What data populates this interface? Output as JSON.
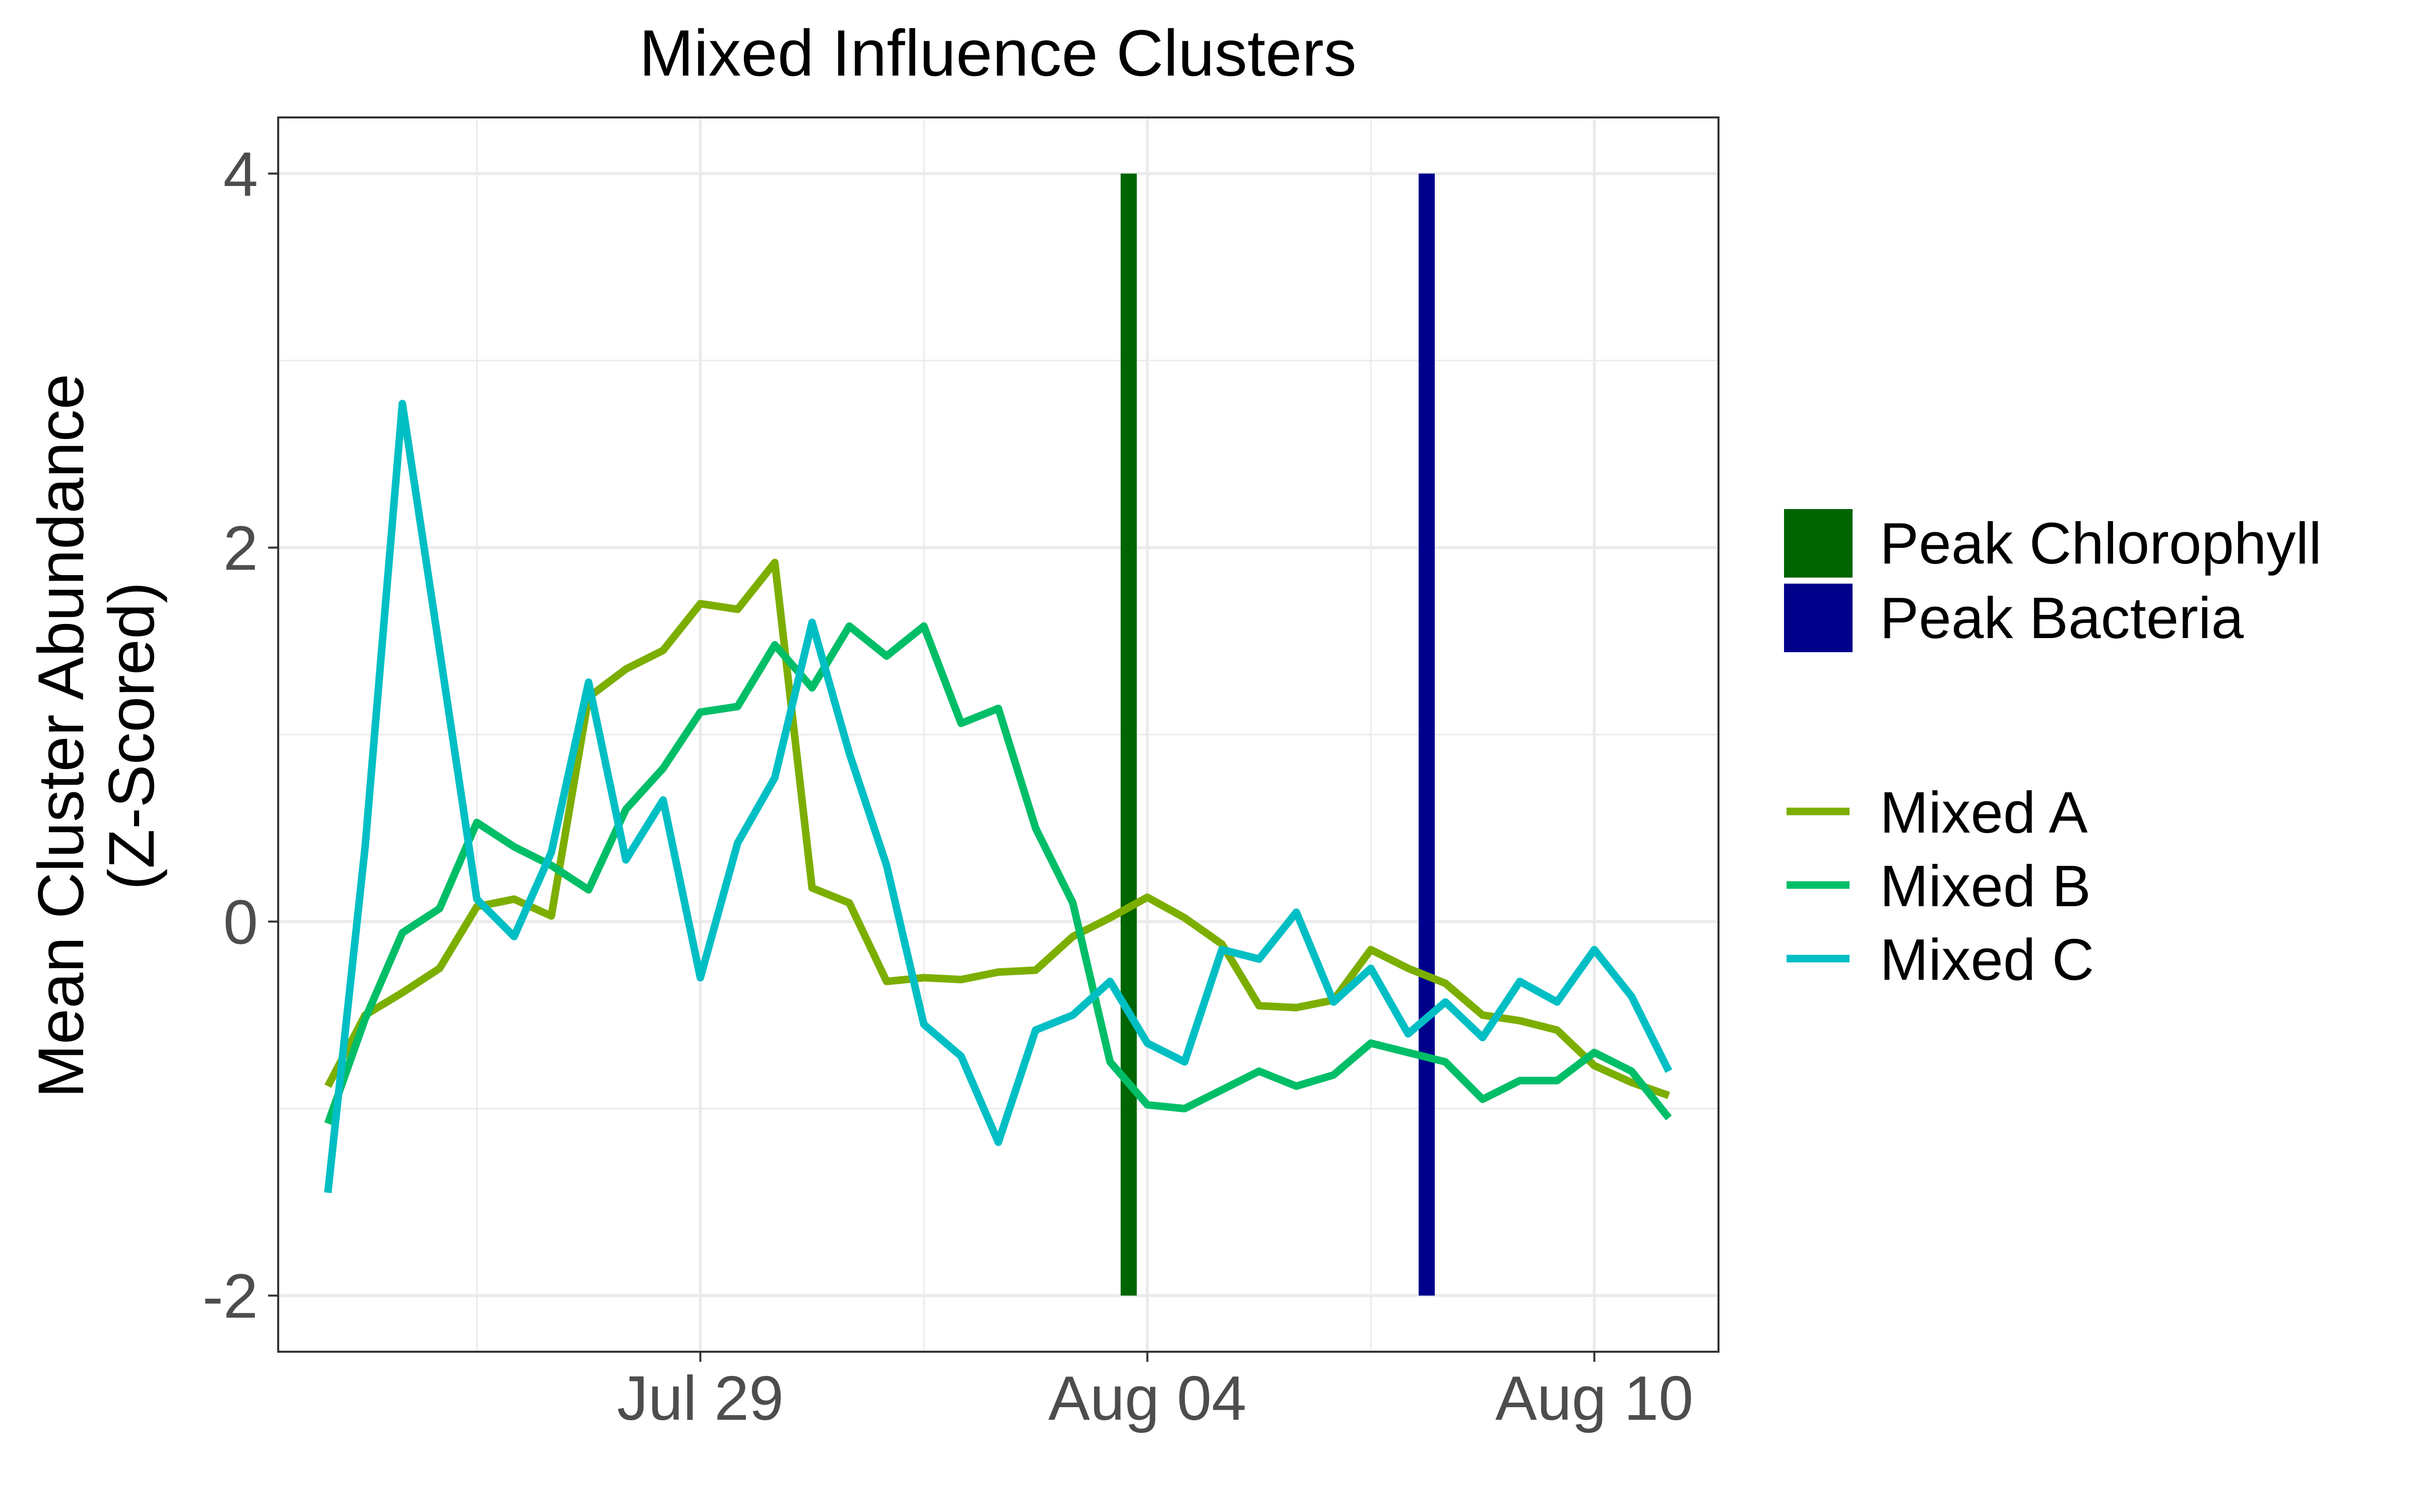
{
  "chart_data": {
    "type": "line",
    "title": "Mixed Influence Clusters",
    "xlabel": "",
    "ylabel": "Mean Cluster Abundance\n(Z-Scored)",
    "ylim": [
      -2.3,
      4.3
    ],
    "xlim": [
      "2022-07-23T08:00",
      "2022-08-11T16:00"
    ],
    "x_ticks": [
      {
        "date": "2022-07-29",
        "label": "Jul 29"
      },
      {
        "date": "2022-08-04",
        "label": "Aug 04"
      },
      {
        "date": "2022-08-10",
        "label": "Aug 10"
      }
    ],
    "y_ticks": [
      {
        "value": -2,
        "label": "-2"
      },
      {
        "value": 0,
        "label": "0"
      },
      {
        "value": 2,
        "label": "2"
      },
      {
        "value": 4,
        "label": "4"
      }
    ],
    "grid": true,
    "legend_position": "right",
    "x": [
      "2022-07-24T00:00",
      "2022-07-24T12:00",
      "2022-07-25T00:00",
      "2022-07-25T12:00",
      "2022-07-26T00:00",
      "2022-07-26T12:00",
      "2022-07-27T00:00",
      "2022-07-27T12:00",
      "2022-07-28T00:00",
      "2022-07-28T12:00",
      "2022-07-29T00:00",
      "2022-07-29T12:00",
      "2022-07-30T00:00",
      "2022-07-30T12:00",
      "2022-07-31T00:00",
      "2022-07-31T12:00",
      "2022-08-01T00:00",
      "2022-08-01T12:00",
      "2022-08-02T00:00",
      "2022-08-02T12:00",
      "2022-08-03T00:00",
      "2022-08-03T12:00",
      "2022-08-04T00:00",
      "2022-08-04T12:00",
      "2022-08-05T00:00",
      "2022-08-05T12:00",
      "2022-08-06T00:00",
      "2022-08-06T12:00",
      "2022-08-07T00:00",
      "2022-08-07T12:00",
      "2022-08-08T00:00",
      "2022-08-08T12:00",
      "2022-08-09T00:00",
      "2022-08-09T12:00",
      "2022-08-10T00:00",
      "2022-08-10T12:00",
      "2022-08-11T00:00"
    ],
    "series": [
      {
        "name": "Mixed A",
        "color": "#7cae00",
        "values": [
          -0.88,
          -0.5,
          -0.38,
          -0.25,
          0.08,
          0.12,
          0.03,
          1.2,
          1.35,
          1.45,
          1.7,
          1.67,
          1.92,
          0.18,
          0.1,
          -0.32,
          -0.3,
          -0.31,
          -0.27,
          -0.26,
          -0.08,
          0.02,
          0.13,
          0.02,
          -0.12,
          -0.45,
          -0.46,
          -0.42,
          -0.15,
          -0.25,
          -0.33,
          -0.5,
          -0.53,
          -0.58,
          -0.77,
          -0.86,
          -0.93
        ]
      },
      {
        "name": "Mixed B",
        "color": "#00be67",
        "values": [
          -1.08,
          -0.52,
          -0.06,
          0.07,
          0.53,
          0.4,
          0.3,
          0.17,
          0.6,
          0.82,
          1.12,
          1.15,
          1.48,
          1.25,
          1.58,
          1.42,
          1.58,
          1.06,
          1.14,
          0.5,
          0.1,
          -0.75,
          -0.98,
          -1.0,
          -0.9,
          -0.8,
          -0.88,
          -0.82,
          -0.65,
          -0.7,
          -0.75,
          -0.95,
          -0.85,
          -0.85,
          -0.7,
          -0.8,
          -1.05
        ]
      },
      {
        "name": "Mixed C",
        "color": "#00bfc4",
        "values": [
          -1.45,
          0.4,
          2.77,
          1.45,
          0.12,
          -0.08,
          0.37,
          1.28,
          0.33,
          0.65,
          -0.3,
          0.42,
          0.77,
          1.6,
          0.9,
          0.3,
          -0.55,
          -0.72,
          -1.18,
          -0.58,
          -0.5,
          -0.32,
          -0.65,
          -0.75,
          -0.15,
          -0.2,
          0.05,
          -0.43,
          -0.25,
          -0.6,
          -0.43,
          -0.62,
          -0.32,
          -0.43,
          -0.15,
          -0.4,
          -0.8
        ]
      }
    ],
    "vertical_markers": [
      {
        "name": "Peak Chlorophyll",
        "date": "2022-08-03T18:00",
        "y_from": -2,
        "y_to": 4,
        "color": "#006400"
      },
      {
        "name": "Peak Bacteria",
        "date": "2022-08-07T18:00",
        "y_from": -2,
        "y_to": 4,
        "color": "#00008b"
      }
    ]
  }
}
